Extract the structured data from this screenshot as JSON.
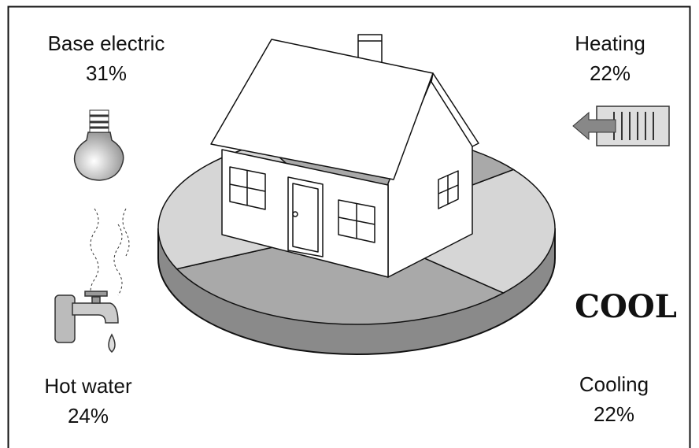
{
  "chart_data": {
    "type": "pie",
    "categories": [
      "Base electric",
      "Heating",
      "Cooling",
      "Hot water"
    ],
    "values": [
      31,
      22,
      22,
      24
    ],
    "value_labels": [
      "31%",
      "22%",
      "22%",
      "24%"
    ],
    "colors": [
      "#a9a9a9",
      "#d6d6d6",
      "#a9a9a9",
      "#d6d6d6"
    ],
    "annotations": [
      "COOL"
    ]
  }
}
